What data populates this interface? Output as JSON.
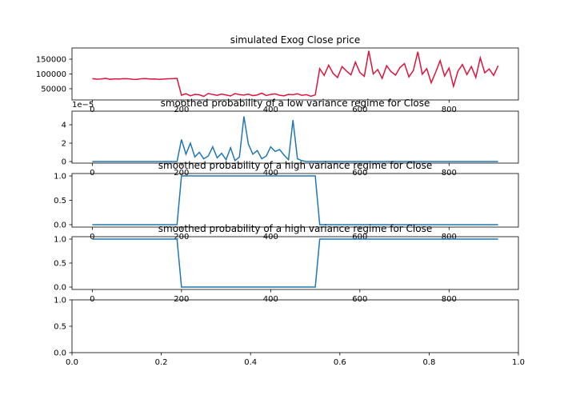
{
  "chart_data": [
    {
      "type": "line",
      "title": "simulated Exog Close price",
      "xlim": [
        -45.5,
        955.5
      ],
      "xticks": [
        0,
        200,
        400,
        600,
        800
      ],
      "ylim": [
        12000,
        188000
      ],
      "yticks": [
        50000,
        100000,
        150000
      ],
      "series": [
        {
          "color": "#dc143c",
          "x": [
            0,
            10,
            20,
            30,
            40,
            50,
            60,
            70,
            80,
            90,
            100,
            110,
            120,
            130,
            140,
            150,
            160,
            170,
            180,
            190,
            200,
            210,
            220,
            230,
            240,
            250,
            260,
            270,
            280,
            290,
            300,
            310,
            320,
            330,
            340,
            350,
            360,
            370,
            380,
            390,
            400,
            410,
            420,
            430,
            440,
            450,
            460,
            470,
            480,
            490,
            500,
            510,
            520,
            530,
            540,
            550,
            560,
            570,
            580,
            590,
            600,
            610,
            620,
            630,
            640,
            650,
            660,
            670,
            680,
            690,
            700,
            710,
            720,
            730,
            740,
            750,
            760,
            770,
            780,
            790,
            800,
            810,
            820,
            830,
            840,
            850,
            860,
            870,
            880,
            890,
            900,
            910
          ],
          "values": [
            84000,
            82500,
            83100,
            85200,
            81900,
            83400,
            82800,
            84100,
            83600,
            82200,
            81700,
            83900,
            84500,
            82600,
            83000,
            81800,
            82900,
            83700,
            84200,
            85000,
            28000,
            33000,
            26000,
            31000,
            29500,
            24000,
            34000,
            30500,
            27500,
            32000,
            29000,
            25500,
            33500,
            30000,
            28500,
            31500,
            26500,
            29000,
            35000,
            27000,
            30500,
            32500,
            28000,
            26000,
            31000,
            29500,
            33000,
            27500,
            30000,
            24500,
            29000,
            118000,
            95000,
            130000,
            102000,
            88000,
            125000,
            110000,
            97000,
            140000,
            105000,
            92000,
            178000,
            100000,
            115000,
            85000,
            128000,
            108000,
            96000,
            122000,
            135000,
            90000,
            112000,
            175000,
            99000,
            118000,
            70000,
            106000,
            145000,
            93000,
            120000,
            58000,
            110000,
            132000,
            98000,
            125000,
            88000,
            155000,
            104000,
            117000,
            95000,
            128000
          ]
        }
      ]
    },
    {
      "type": "line",
      "title": "smoothed probability of a low variance regime for Close",
      "offset_label": "1e−5",
      "xlim": [
        -45.5,
        955.5
      ],
      "xticks": [
        0,
        200,
        400,
        600,
        800
      ],
      "ylim": [
        -0.17,
        5.48
      ],
      "yticks": [
        0,
        2,
        4
      ],
      "series": [
        {
          "color": "#1f77b4",
          "x": [
            0,
            10,
            20,
            30,
            40,
            50,
            60,
            70,
            80,
            90,
            100,
            110,
            120,
            130,
            140,
            150,
            160,
            170,
            180,
            190,
            200,
            210,
            220,
            230,
            240,
            250,
            260,
            270,
            280,
            290,
            300,
            310,
            320,
            330,
            340,
            350,
            360,
            370,
            380,
            390,
            400,
            410,
            420,
            430,
            440,
            450,
            460,
            470,
            480,
            490,
            500,
            510,
            520,
            530,
            540,
            550,
            560,
            570,
            580,
            590,
            600,
            610,
            620,
            630,
            640,
            650,
            660,
            670,
            680,
            690,
            700,
            710,
            720,
            730,
            740,
            750,
            760,
            770,
            780,
            790,
            800,
            810,
            820,
            830,
            840,
            850,
            860,
            870,
            880,
            890,
            900,
            910
          ],
          "values": [
            0,
            0,
            0,
            0,
            0,
            0,
            0,
            0,
            0,
            0,
            0,
            0,
            0,
            0,
            0,
            0,
            0,
            0,
            0,
            0,
            2.4,
            0.8,
            2.0,
            0.5,
            1.0,
            0.3,
            0.6,
            1.6,
            0.4,
            0.9,
            0.2,
            1.5,
            0.1,
            0.5,
            4.9,
            1.9,
            0.8,
            1.2,
            0.3,
            0.6,
            1.6,
            1.1,
            1.3,
            0.7,
            0.2,
            4.5,
            0.3,
            0.1,
            0,
            0,
            0,
            0,
            0,
            0,
            0,
            0,
            0,
            0,
            0,
            0,
            0,
            0,
            0,
            0,
            0,
            0,
            0,
            0,
            0,
            0,
            0,
            0,
            0,
            0,
            0,
            0,
            0,
            0,
            0,
            0,
            0,
            0,
            0,
            0,
            0,
            0,
            0,
            0,
            0,
            0,
            0,
            0
          ]
        }
      ]
    },
    {
      "type": "line",
      "title": "smoothed probability of a high variance regime for Close",
      "xlim": [
        -45.5,
        955.5
      ],
      "xticks": [
        0,
        200,
        400,
        600,
        800
      ],
      "ylim": [
        -0.05,
        1.05
      ],
      "yticks": [
        {
          "value": 0,
          "label": "0.0"
        },
        0.5,
        {
          "value": 1,
          "label": "1.0"
        }
      ],
      "series": [
        {
          "color": "#1f77b4",
          "x": [
            0,
            10,
            20,
            30,
            40,
            50,
            60,
            70,
            80,
            90,
            100,
            110,
            120,
            130,
            140,
            150,
            160,
            170,
            180,
            190,
            200,
            210,
            220,
            230,
            240,
            250,
            260,
            270,
            280,
            290,
            300,
            310,
            320,
            330,
            340,
            350,
            360,
            370,
            380,
            390,
            400,
            410,
            420,
            430,
            440,
            450,
            460,
            470,
            480,
            490,
            500,
            510,
            520,
            530,
            540,
            550,
            560,
            570,
            580,
            590,
            600,
            610,
            620,
            630,
            640,
            650,
            660,
            670,
            680,
            690,
            700,
            710,
            720,
            730,
            740,
            750,
            760,
            770,
            780,
            790,
            800,
            810,
            820,
            830,
            840,
            850,
            860,
            870,
            880,
            890,
            900,
            910
          ],
          "values": [
            0,
            0,
            0,
            0,
            0,
            0,
            0,
            0,
            0,
            0,
            0,
            0,
            0,
            0,
            0,
            0,
            0,
            0,
            0,
            0,
            1,
            1,
            1,
            1,
            1,
            1,
            1,
            1,
            1,
            1,
            1,
            1,
            1,
            1,
            1,
            1,
            1,
            1,
            1,
            1,
            1,
            1,
            1,
            1,
            1,
            1,
            1,
            1,
            1,
            1,
            1,
            0,
            0,
            0,
            0,
            0,
            0,
            0,
            0,
            0,
            0,
            0,
            0,
            0,
            0,
            0,
            0,
            0,
            0,
            0,
            0,
            0,
            0,
            0,
            0,
            0,
            0,
            0,
            0,
            0,
            0,
            0,
            0,
            0,
            0,
            0,
            0,
            0,
            0,
            0,
            0,
            0
          ]
        }
      ]
    },
    {
      "type": "line",
      "title": "smoothed probability of a high variance regime for Close",
      "xlim": [
        -45.5,
        955.5
      ],
      "xticks": [
        0,
        200,
        400,
        600,
        800
      ],
      "ylim": [
        -0.05,
        1.05
      ],
      "yticks": [
        {
          "value": 0,
          "label": "0.0"
        },
        0.5,
        {
          "value": 1,
          "label": "1.0"
        }
      ],
      "series": [
        {
          "color": "#1f77b4",
          "x": [
            0,
            10,
            20,
            30,
            40,
            50,
            60,
            70,
            80,
            90,
            100,
            110,
            120,
            130,
            140,
            150,
            160,
            170,
            180,
            190,
            200,
            210,
            220,
            230,
            240,
            250,
            260,
            270,
            280,
            290,
            300,
            310,
            320,
            330,
            340,
            350,
            360,
            370,
            380,
            390,
            400,
            410,
            420,
            430,
            440,
            450,
            460,
            470,
            480,
            490,
            500,
            510,
            520,
            530,
            540,
            550,
            560,
            570,
            580,
            590,
            600,
            610,
            620,
            630,
            640,
            650,
            660,
            670,
            680,
            690,
            700,
            710,
            720,
            730,
            740,
            750,
            760,
            770,
            780,
            790,
            800,
            810,
            820,
            830,
            840,
            850,
            860,
            870,
            880,
            890,
            900,
            910
          ],
          "values": [
            1,
            1,
            1,
            1,
            1,
            1,
            1,
            1,
            1,
            1,
            1,
            1,
            1,
            1,
            1,
            1,
            1,
            1,
            1,
            1,
            0,
            0,
            0,
            0,
            0,
            0,
            0,
            0,
            0,
            0,
            0,
            0,
            0,
            0,
            0,
            0,
            0,
            0,
            0,
            0,
            0,
            0,
            0,
            0,
            0,
            0,
            0,
            0,
            0,
            0,
            0,
            1,
            1,
            1,
            1,
            1,
            1,
            1,
            1,
            1,
            1,
            1,
            1,
            1,
            1,
            1,
            1,
            1,
            1,
            1,
            1,
            1,
            1,
            1,
            1,
            1,
            1,
            1,
            1,
            1,
            1,
            1,
            1,
            1,
            1,
            1,
            1,
            1,
            1,
            1,
            1,
            1
          ]
        }
      ]
    },
    {
      "type": "line",
      "xlim": [
        0,
        1
      ],
      "xticks": [
        {
          "value": 0,
          "label": "0.0"
        },
        0.2,
        0.4,
        0.6,
        0.8,
        {
          "value": 1,
          "label": "1.0"
        }
      ],
      "ylim": [
        0,
        1
      ],
      "yticks": [
        {
          "value": 0,
          "label": "0.0"
        },
        0.5,
        {
          "value": 1,
          "label": "1.0"
        }
      ],
      "series": []
    }
  ]
}
